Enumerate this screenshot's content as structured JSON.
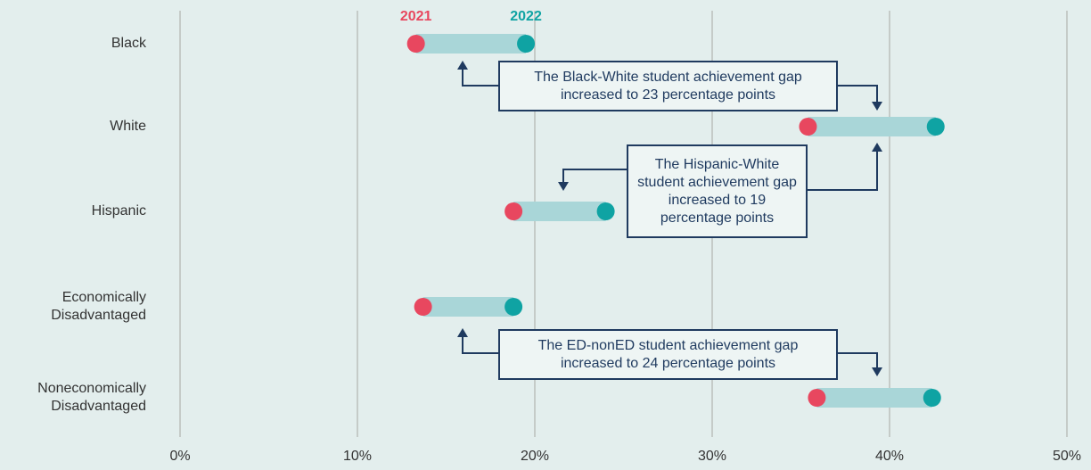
{
  "chart_data": {
    "type": "dumbbell",
    "categories": [
      "Black",
      "White",
      "Hispanic",
      "Economically Disadvantaged",
      "Noneconomically Disadvantaged"
    ],
    "series": [
      {
        "name": "2021",
        "color": "#e8475f",
        "values": [
          13.3,
          35.4,
          18.8,
          13.7,
          35.9
        ]
      },
      {
        "name": "2022",
        "color": "#0fa3a3",
        "values": [
          19.5,
          42.6,
          24.0,
          18.8,
          42.4
        ]
      }
    ],
    "bar_color": "#a9d6d8",
    "xlim": [
      0,
      50
    ],
    "xticks": [
      {
        "value": 0,
        "label": "0%"
      },
      {
        "value": 10,
        "label": "10%"
      },
      {
        "value": 20,
        "label": "20%"
      },
      {
        "value": 30,
        "label": "30%"
      },
      {
        "value": 40,
        "label": "40%"
      },
      {
        "value": 50,
        "label": "50%"
      }
    ],
    "grid": true,
    "annotations": [
      {
        "text": "The Black-White student achievement gap increased to 23 percentage points"
      },
      {
        "text": "The Hispanic-White student achievement gap increased to 19 percentage points"
      },
      {
        "text": "The ED-nonED student achievement gap increased to 24 percentage points"
      }
    ]
  }
}
